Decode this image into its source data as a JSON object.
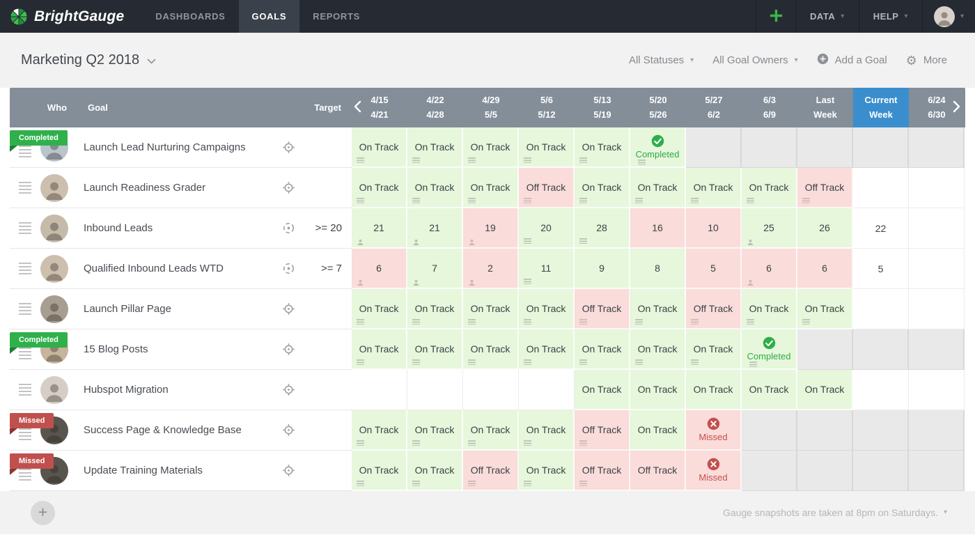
{
  "nav": {
    "brand": "BrightGauge",
    "tabs": [
      {
        "label": "DASHBOARDS",
        "active": false
      },
      {
        "label": "GOALS",
        "active": true
      },
      {
        "label": "REPORTS",
        "active": false
      }
    ],
    "menus": [
      {
        "label": "DATA"
      },
      {
        "label": "HELP"
      }
    ]
  },
  "toolbar": {
    "title": "Marketing Q2 2018",
    "status_filter": "All Statuses",
    "owner_filter": "All Goal Owners",
    "add_goal": "Add a Goal",
    "more": "More"
  },
  "colors": {
    "accent_green": "#3cb549",
    "header_gray": "#848e99",
    "current_week_blue": "#3a8ecd",
    "on_track_bg": "#e6f7db",
    "off_track_bg": "#fadcda",
    "completed_green": "#2fb04b",
    "missed_red": "#c0504d"
  },
  "table": {
    "headers": {
      "who": "Who",
      "goal": "Goal",
      "target": "Target"
    },
    "weeks": [
      {
        "line1": "4/15",
        "line2": "4/21"
      },
      {
        "line1": "4/22",
        "line2": "4/28"
      },
      {
        "line1": "4/29",
        "line2": "5/5"
      },
      {
        "line1": "5/6",
        "line2": "5/12"
      },
      {
        "line1": "5/13",
        "line2": "5/19"
      },
      {
        "line1": "5/20",
        "line2": "5/26"
      },
      {
        "line1": "5/27",
        "line2": "6/2"
      },
      {
        "line1": "6/3",
        "line2": "6/9"
      },
      {
        "line1": "Last",
        "line2": "Week"
      },
      {
        "line1": "Current",
        "line2": "Week",
        "current": true
      },
      {
        "line1": "6/24",
        "line2": "6/30"
      }
    ],
    "rows": [
      {
        "badge": "Completed",
        "goal": "Launch Lead Nurturing Campaigns",
        "target": "",
        "target_icon": "crosshair",
        "avatar_color": "#b9c4cd",
        "cells": [
          {
            "text": "On Track",
            "bg": "green",
            "note": true
          },
          {
            "text": "On Track",
            "bg": "green",
            "note": true
          },
          {
            "text": "On Track",
            "bg": "green",
            "note": true
          },
          {
            "text": "On Track",
            "bg": "green",
            "note": true
          },
          {
            "text": "On Track",
            "bg": "green",
            "note": true
          },
          {
            "text": "Completed",
            "bg": "green",
            "icon": "check",
            "note": true
          },
          {
            "bg": "gray"
          },
          {
            "bg": "gray"
          },
          {
            "bg": "gray"
          },
          {
            "bg": "gray"
          },
          {
            "bg": "gray"
          }
        ]
      },
      {
        "badge": null,
        "goal": "Launch Readiness Grader",
        "target": "",
        "target_icon": "crosshair",
        "avatar_color": "#ccbfae",
        "cells": [
          {
            "text": "On Track",
            "bg": "green",
            "note": true
          },
          {
            "text": "On Track",
            "bg": "green",
            "note": true
          },
          {
            "text": "On Track",
            "bg": "green",
            "note": true
          },
          {
            "text": "Off Track",
            "bg": "pink",
            "note": true
          },
          {
            "text": "On Track",
            "bg": "green",
            "note": true
          },
          {
            "text": "On Track",
            "bg": "green",
            "note": true
          },
          {
            "text": "On Track",
            "bg": "green",
            "note": true
          },
          {
            "text": "On Track",
            "bg": "green",
            "note": true
          },
          {
            "text": "Off Track",
            "bg": "pink",
            "note": true
          },
          {
            "bg": "white"
          },
          {
            "bg": "white"
          }
        ]
      },
      {
        "badge": null,
        "goal": "Inbound Leads",
        "target": ">= 20",
        "target_icon": "dashed",
        "avatar_color": "#c6bba9",
        "cells": [
          {
            "text": "21",
            "bg": "green",
            "person": true
          },
          {
            "text": "21",
            "bg": "green",
            "person": true
          },
          {
            "text": "19",
            "bg": "pink",
            "person": true
          },
          {
            "text": "20",
            "bg": "green",
            "note": true
          },
          {
            "text": "28",
            "bg": "green",
            "note": true
          },
          {
            "text": "16",
            "bg": "pink"
          },
          {
            "text": "10",
            "bg": "pink"
          },
          {
            "text": "25",
            "bg": "green",
            "person": true
          },
          {
            "text": "26",
            "bg": "green"
          },
          {
            "text": "22",
            "bg": "white"
          },
          {
            "bg": "white"
          }
        ]
      },
      {
        "badge": null,
        "goal": "Qualified Inbound Leads WTD",
        "target": ">= 7",
        "target_icon": "dashed",
        "avatar_color": "#ccbfae",
        "cells": [
          {
            "text": "6",
            "bg": "pink",
            "person": true
          },
          {
            "text": "7",
            "bg": "green",
            "person": true
          },
          {
            "text": "2",
            "bg": "pink",
            "person": true
          },
          {
            "text": "11",
            "bg": "green",
            "note": true
          },
          {
            "text": "9",
            "bg": "green"
          },
          {
            "text": "8",
            "bg": "green"
          },
          {
            "text": "5",
            "bg": "pink"
          },
          {
            "text": "6",
            "bg": "pink",
            "person": true
          },
          {
            "text": "6",
            "bg": "pink"
          },
          {
            "text": "5",
            "bg": "white"
          },
          {
            "bg": "white"
          }
        ]
      },
      {
        "badge": null,
        "goal": "Launch Pillar Page",
        "target": "",
        "target_icon": "crosshair",
        "avatar_color": "#a79d90",
        "cells": [
          {
            "text": "On Track",
            "bg": "green",
            "note": true
          },
          {
            "text": "On Track",
            "bg": "green",
            "note": true
          },
          {
            "text": "On Track",
            "bg": "green",
            "note": true
          },
          {
            "text": "On Track",
            "bg": "green",
            "note": true
          },
          {
            "text": "Off Track",
            "bg": "pink",
            "note": true
          },
          {
            "text": "On Track",
            "bg": "green",
            "note": true
          },
          {
            "text": "Off Track",
            "bg": "pink",
            "note": true
          },
          {
            "text": "On Track",
            "bg": "green",
            "note": true
          },
          {
            "text": "On Track",
            "bg": "green",
            "note": true
          },
          {
            "bg": "white"
          },
          {
            "bg": "white"
          }
        ]
      },
      {
        "badge": "Completed",
        "goal": "15 Blog Posts",
        "target": "",
        "target_icon": "crosshair",
        "avatar_color": "#c6b49c",
        "cells": [
          {
            "text": "On Track",
            "bg": "green",
            "note": true
          },
          {
            "text": "On Track",
            "bg": "green",
            "note": true
          },
          {
            "text": "On Track",
            "bg": "green",
            "note": true
          },
          {
            "text": "On Track",
            "bg": "green",
            "note": true
          },
          {
            "text": "On Track",
            "bg": "green",
            "note": true
          },
          {
            "text": "On Track",
            "bg": "green",
            "note": true
          },
          {
            "text": "On Track",
            "bg": "green",
            "note": true
          },
          {
            "text": "Completed",
            "bg": "green",
            "icon": "check",
            "note": true
          },
          {
            "bg": "gray"
          },
          {
            "bg": "gray"
          },
          {
            "bg": "gray"
          }
        ]
      },
      {
        "badge": null,
        "goal": "Hubspot Migration",
        "target": "",
        "target_icon": "crosshair",
        "avatar_color": "#d6cec6",
        "cells": [
          {
            "bg": "white"
          },
          {
            "bg": "white"
          },
          {
            "bg": "white"
          },
          {
            "bg": "white"
          },
          {
            "text": "On Track",
            "bg": "green"
          },
          {
            "text": "On Track",
            "bg": "green"
          },
          {
            "text": "On Track",
            "bg": "green"
          },
          {
            "text": "On Track",
            "bg": "green"
          },
          {
            "text": "On Track",
            "bg": "green"
          },
          {
            "bg": "white"
          },
          {
            "bg": "white"
          }
        ]
      },
      {
        "badge": "Missed",
        "goal": "Success Page & Knowledge Base",
        "target": "",
        "target_icon": "crosshair",
        "avatar_color": "#5a544e",
        "cells": [
          {
            "text": "On Track",
            "bg": "green",
            "note": true
          },
          {
            "text": "On Track",
            "bg": "green",
            "note": true
          },
          {
            "text": "On Track",
            "bg": "green",
            "note": true
          },
          {
            "text": "On Track",
            "bg": "green",
            "note": true
          },
          {
            "text": "Off Track",
            "bg": "pink",
            "note": true
          },
          {
            "text": "On Track",
            "bg": "green"
          },
          {
            "text": "Missed",
            "bg": "pink",
            "icon": "x"
          },
          {
            "bg": "gray"
          },
          {
            "bg": "gray"
          },
          {
            "bg": "gray"
          },
          {
            "bg": "gray"
          }
        ]
      },
      {
        "badge": "Missed",
        "goal": "Update Training Materials",
        "target": "",
        "target_icon": "crosshair",
        "avatar_color": "#5a544e",
        "cells": [
          {
            "text": "On Track",
            "bg": "green",
            "note": true
          },
          {
            "text": "On Track",
            "bg": "green",
            "note": true
          },
          {
            "text": "Off Track",
            "bg": "pink",
            "note": true
          },
          {
            "text": "On Track",
            "bg": "green",
            "note": true
          },
          {
            "text": "Off Track",
            "bg": "pink",
            "note": true
          },
          {
            "text": "Off Track",
            "bg": "pink"
          },
          {
            "text": "Missed",
            "bg": "pink",
            "icon": "x"
          },
          {
            "bg": "gray"
          },
          {
            "bg": "gray"
          },
          {
            "bg": "gray"
          },
          {
            "bg": "gray"
          }
        ]
      }
    ]
  },
  "footer": {
    "note": "Gauge snapshots are taken at 8pm on Saturdays."
  }
}
